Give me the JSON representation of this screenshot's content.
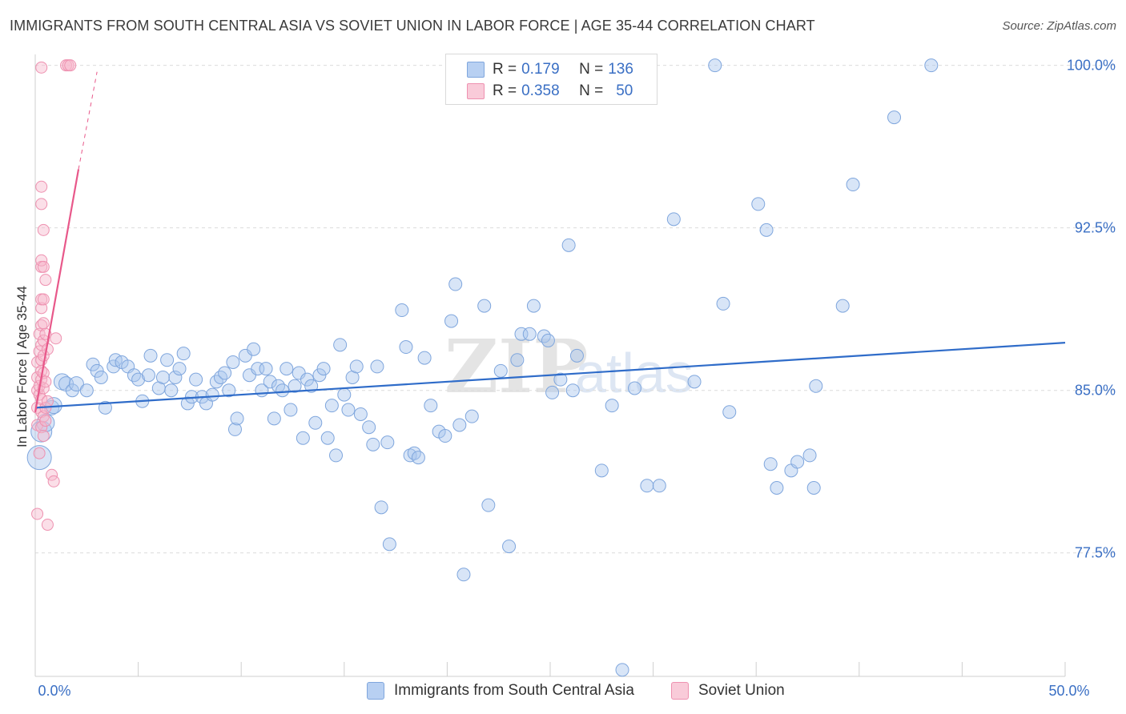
{
  "header": {
    "title": "IMMIGRANTS FROM SOUTH CENTRAL ASIA VS SOVIET UNION IN LABOR FORCE | AGE 35-44 CORRELATION CHART",
    "source": "Source: ZipAtlas.com"
  },
  "legend": {
    "rows": [
      {
        "r_label": "R =",
        "r_value": "0.179",
        "n_label": "N =",
        "n_value": "136"
      },
      {
        "r_label": "R =",
        "r_value": "0.358",
        "n_label": "N =",
        "n_value": "50"
      }
    ]
  },
  "bottom_legend": {
    "series1": "Immigrants from South Central Asia",
    "series2": "Soviet Union"
  },
  "colors": {
    "blue_fill": "#a9c6ee",
    "blue_stroke": "#7fa6dd",
    "blue_line": "#2f6cc9",
    "pink_fill": "#f6b8cb",
    "pink_stroke": "#ee91b0",
    "pink_line": "#e8588a",
    "tick_label": "#3a6fc4",
    "grid": "#dcdcdc"
  },
  "chart_data": {
    "type": "scatter",
    "ylabel": "In Labor Force | Age 35-44",
    "xlim": [
      0,
      50
    ],
    "ylim": [
      71.8,
      100.8
    ],
    "x_ticks": [
      0,
      50
    ],
    "x_tick_labels": [
      "0.0%",
      "50.0%"
    ],
    "y_ticks": [
      77.5,
      85.0,
      92.5,
      100.0
    ],
    "y_tick_labels": [
      "77.5%",
      "85.0%",
      "92.5%",
      "100.0%"
    ],
    "grid": true,
    "legend_position": "top-center",
    "watermark": "ZIPatlas",
    "series": [
      {
        "name": "Immigrants from South Central Asia",
        "color": "#a9c6ee",
        "trend": {
          "x": [
            0,
            50
          ],
          "y": [
            84.2,
            87.2
          ]
        },
        "points": [
          [
            0.2,
            81.9,
            14
          ],
          [
            0.3,
            83.1,
            12
          ],
          [
            0.5,
            83.5,
            10
          ],
          [
            0.8,
            84.2,
            8
          ],
          [
            0.9,
            84.3,
            9
          ],
          [
            1.3,
            85.4,
            9
          ],
          [
            1.5,
            85.3,
            8
          ],
          [
            1.8,
            85.0,
            7
          ],
          [
            2.0,
            85.3,
            8
          ],
          [
            2.5,
            85.0,
            7
          ],
          [
            2.8,
            86.2,
            7
          ],
          [
            3.0,
            85.9,
            7
          ],
          [
            3.2,
            85.6,
            7
          ],
          [
            3.4,
            84.2,
            7
          ],
          [
            3.8,
            86.1,
            7
          ],
          [
            3.9,
            86.4,
            7
          ],
          [
            4.2,
            86.3,
            7
          ],
          [
            4.5,
            86.1,
            7
          ],
          [
            4.8,
            85.7,
            7
          ],
          [
            5.0,
            85.5,
            7
          ],
          [
            5.2,
            84.5,
            7
          ],
          [
            5.5,
            85.7,
            7
          ],
          [
            5.6,
            86.6,
            7
          ],
          [
            6.0,
            85.1,
            7
          ],
          [
            6.2,
            85.6,
            7
          ],
          [
            6.4,
            86.4,
            7
          ],
          [
            6.6,
            85.0,
            7
          ],
          [
            6.8,
            85.6,
            7
          ],
          [
            7.0,
            86.0,
            7
          ],
          [
            7.2,
            86.7,
            7
          ],
          [
            7.4,
            84.4,
            7
          ],
          [
            7.6,
            84.7,
            7
          ],
          [
            7.8,
            85.5,
            7
          ],
          [
            8.1,
            84.7,
            7
          ],
          [
            8.3,
            84.4,
            7
          ],
          [
            8.6,
            84.8,
            7
          ],
          [
            8.8,
            85.4,
            7
          ],
          [
            9.0,
            85.6,
            7
          ],
          [
            9.2,
            85.8,
            7
          ],
          [
            9.4,
            85.0,
            7
          ],
          [
            9.6,
            86.3,
            7
          ],
          [
            9.7,
            83.2,
            7
          ],
          [
            9.8,
            83.7,
            7
          ],
          [
            10.2,
            86.6,
            7
          ],
          [
            10.4,
            85.7,
            7
          ],
          [
            10.6,
            86.9,
            7
          ],
          [
            10.8,
            86.0,
            7
          ],
          [
            11.0,
            85.0,
            7
          ],
          [
            11.2,
            86.0,
            7
          ],
          [
            11.4,
            85.4,
            7
          ],
          [
            11.6,
            83.7,
            7
          ],
          [
            11.8,
            85.2,
            7
          ],
          [
            12.0,
            85.0,
            7
          ],
          [
            12.2,
            86.0,
            7
          ],
          [
            12.4,
            84.1,
            7
          ],
          [
            12.6,
            85.2,
            7
          ],
          [
            12.8,
            85.8,
            7
          ],
          [
            13.0,
            82.8,
            7
          ],
          [
            13.2,
            85.5,
            7
          ],
          [
            13.4,
            85.2,
            7
          ],
          [
            13.6,
            83.5,
            7
          ],
          [
            13.8,
            85.7,
            7
          ],
          [
            14.0,
            86.0,
            7
          ],
          [
            14.2,
            82.8,
            7
          ],
          [
            14.4,
            84.3,
            7
          ],
          [
            14.6,
            82.0,
            7
          ],
          [
            14.8,
            87.1,
            7
          ],
          [
            15.0,
            84.8,
            7
          ],
          [
            15.2,
            84.1,
            7
          ],
          [
            15.4,
            85.6,
            7
          ],
          [
            15.6,
            86.1,
            7
          ],
          [
            15.8,
            83.9,
            7
          ],
          [
            16.2,
            83.3,
            7
          ],
          [
            16.4,
            82.5,
            7
          ],
          [
            16.6,
            86.1,
            7
          ],
          [
            16.8,
            79.6,
            7
          ],
          [
            17.1,
            82.6,
            7
          ],
          [
            17.2,
            77.9,
            7
          ],
          [
            17.8,
            88.7,
            7
          ],
          [
            18.0,
            87.0,
            7
          ],
          [
            18.2,
            82.0,
            7
          ],
          [
            18.4,
            82.1,
            7
          ],
          [
            18.6,
            81.9,
            7
          ],
          [
            18.9,
            86.5,
            7
          ],
          [
            19.2,
            84.3,
            7
          ],
          [
            19.6,
            83.1,
            7
          ],
          [
            19.9,
            82.9,
            7
          ],
          [
            20.2,
            88.2,
            7
          ],
          [
            20.4,
            89.9,
            7
          ],
          [
            20.6,
            83.4,
            7
          ],
          [
            20.8,
            76.5,
            7
          ],
          [
            21.2,
            83.8,
            7
          ],
          [
            21.8,
            88.9,
            7
          ],
          [
            22.0,
            79.7,
            7
          ],
          [
            22.6,
            85.9,
            7
          ],
          [
            23.0,
            77.8,
            7
          ],
          [
            23.4,
            86.4,
            7
          ],
          [
            23.6,
            87.6,
            7
          ],
          [
            24.0,
            87.6,
            7
          ],
          [
            24.2,
            88.9,
            7
          ],
          [
            24.7,
            87.5,
            7
          ],
          [
            24.9,
            87.3,
            7
          ],
          [
            25.1,
            84.9,
            7
          ],
          [
            25.5,
            85.5,
            7
          ],
          [
            25.9,
            91.7,
            7
          ],
          [
            26.1,
            85.0,
            7
          ],
          [
            26.3,
            86.6,
            7
          ],
          [
            27.5,
            81.3,
            7
          ],
          [
            28.0,
            84.3,
            7
          ],
          [
            28.5,
            72.1,
            7
          ],
          [
            29.1,
            85.1,
            7
          ],
          [
            29.7,
            80.6,
            7
          ],
          [
            30.3,
            80.6,
            7
          ],
          [
            31.0,
            92.9,
            7
          ],
          [
            32.0,
            85.4,
            7
          ],
          [
            33.0,
            100.0,
            7
          ],
          [
            33.4,
            89.0,
            7
          ],
          [
            33.7,
            84.0,
            7
          ],
          [
            35.1,
            93.6,
            7
          ],
          [
            35.5,
            92.4,
            7
          ],
          [
            35.7,
            81.6,
            7
          ],
          [
            36.0,
            80.5,
            7
          ],
          [
            36.7,
            81.3,
            7
          ],
          [
            37.0,
            81.7,
            7
          ],
          [
            37.6,
            82.0,
            7
          ],
          [
            37.8,
            80.5,
            7
          ],
          [
            37.9,
            85.2,
            7
          ],
          [
            39.2,
            88.9,
            7
          ],
          [
            39.7,
            94.5,
            7
          ],
          [
            41.7,
            97.6,
            7
          ],
          [
            43.5,
            100.0,
            7
          ]
        ]
      },
      {
        "name": "Soviet Union",
        "color": "#f6b8cb",
        "trend": {
          "x": [
            0,
            2.1
          ],
          "y": [
            84.0,
            95.2
          ]
        },
        "trend_dashed": {
          "x": [
            2.1,
            3.0
          ],
          "y": [
            95.2,
            99.7
          ]
        },
        "points": [
          [
            0.1,
            83.4,
            6
          ],
          [
            0.1,
            84.2,
            6
          ],
          [
            0.1,
            85.0,
            6
          ],
          [
            0.1,
            85.6,
            6
          ],
          [
            0.1,
            86.3,
            6
          ],
          [
            0.2,
            82.1,
            6
          ],
          [
            0.2,
            84.8,
            6
          ],
          [
            0.2,
            85.2,
            6
          ],
          [
            0.2,
            86.8,
            6
          ],
          [
            0.2,
            87.6,
            6
          ],
          [
            0.3,
            83.3,
            6
          ],
          [
            0.3,
            84.0,
            6
          ],
          [
            0.3,
            84.6,
            6
          ],
          [
            0.3,
            85.5,
            6
          ],
          [
            0.3,
            85.9,
            6
          ],
          [
            0.3,
            86.4,
            6
          ],
          [
            0.3,
            87.1,
            6
          ],
          [
            0.3,
            88.0,
            6
          ],
          [
            0.3,
            88.8,
            6
          ],
          [
            0.3,
            89.2,
            6
          ],
          [
            0.3,
            90.7,
            6
          ],
          [
            0.3,
            91.0,
            6
          ],
          [
            0.3,
            93.6,
            6
          ],
          [
            0.3,
            94.4,
            6
          ],
          [
            0.3,
            99.9,
            6
          ],
          [
            0.4,
            82.9,
            6
          ],
          [
            0.4,
            83.8,
            6
          ],
          [
            0.4,
            85.1,
            6
          ],
          [
            0.4,
            85.8,
            6
          ],
          [
            0.4,
            86.6,
            6
          ],
          [
            0.4,
            87.3,
            6
          ],
          [
            0.4,
            88.1,
            6
          ],
          [
            0.4,
            89.2,
            6
          ],
          [
            0.4,
            90.7,
            6
          ],
          [
            0.4,
            92.4,
            6
          ],
          [
            0.5,
            83.6,
            6
          ],
          [
            0.5,
            84.2,
            6
          ],
          [
            0.5,
            85.4,
            6
          ],
          [
            0.5,
            87.6,
            6
          ],
          [
            0.5,
            90.1,
            6
          ],
          [
            0.6,
            84.5,
            6
          ],
          [
            0.6,
            86.9,
            6
          ],
          [
            0.6,
            78.8,
            6
          ],
          [
            0.8,
            81.1,
            6
          ],
          [
            0.9,
            80.8,
            6
          ],
          [
            1.0,
            87.4,
            6
          ],
          [
            1.5,
            100.0,
            6
          ],
          [
            1.6,
            100.0,
            6
          ],
          [
            1.7,
            100.0,
            6
          ],
          [
            0.1,
            79.3,
            6
          ]
        ]
      }
    ]
  }
}
